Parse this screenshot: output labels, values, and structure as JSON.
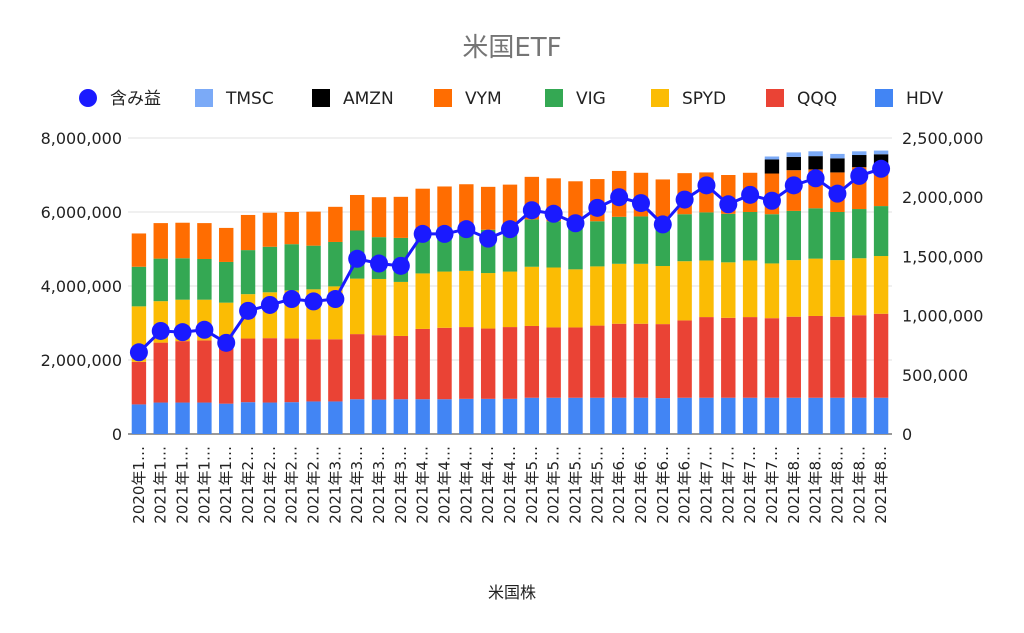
{
  "chart_data": {
    "type": "bar",
    "title": "米国ETF",
    "xlabel": "米国株",
    "ylabel": "",
    "ylim": [
      0,
      8000000
    ],
    "y_ticks": [
      "0",
      "2,000,000",
      "4,000,000",
      "6,000,000",
      "8,000,000"
    ],
    "y2lim": [
      0,
      2500000
    ],
    "y2_ticks": [
      "0",
      "500,000",
      "1,000,000",
      "1,500,000",
      "2,000,000",
      "2,500,000"
    ],
    "stacked": true,
    "grid": true,
    "legend_position": "top",
    "categories": [
      "2020年1…",
      "2021年1…",
      "2021年1…",
      "2021年1…",
      "2021年1…",
      "2021年2…",
      "2021年2…",
      "2021年2…",
      "2021年2…",
      "2021年3…",
      "2021年3…",
      "2021年3…",
      "2021年3…",
      "2021年4…",
      "2021年4…",
      "2021年4…",
      "2021年4…",
      "2021年4…",
      "2021年5…",
      "2021年5…",
      "2021年5…",
      "2021年5…",
      "2021年6…",
      "2021年6…",
      "2021年6…",
      "2021年6…",
      "2021年7…",
      "2021年7…",
      "2021年7…",
      "2021年7…",
      "2021年8…",
      "2021年8…",
      "2021年8…",
      "2021年8…",
      "2021年8…"
    ],
    "series": [
      {
        "name": "HDV",
        "color": "#4285f4",
        "values": [
          800000,
          850000,
          850000,
          850000,
          820000,
          860000,
          850000,
          860000,
          880000,
          880000,
          940000,
          930000,
          940000,
          940000,
          940000,
          950000,
          950000,
          950000,
          980000,
          980000,
          980000,
          980000,
          980000,
          980000,
          970000,
          980000,
          980000,
          980000,
          980000,
          980000,
          980000,
          980000,
          980000,
          980000,
          980000
        ]
      },
      {
        "name": "QQQ",
        "color": "#ea4335",
        "values": [
          1150000,
          1620000,
          1660000,
          1680000,
          1630000,
          1720000,
          1740000,
          1720000,
          1680000,
          1680000,
          1760000,
          1740000,
          1710000,
          1900000,
          1930000,
          1940000,
          1900000,
          1940000,
          1940000,
          1900000,
          1900000,
          1950000,
          2000000,
          2000000,
          2000000,
          2090000,
          2180000,
          2160000,
          2180000,
          2150000,
          2190000,
          2210000,
          2190000,
          2230000,
          2270000
        ]
      },
      {
        "name": "SPYD",
        "color": "#fbbc04",
        "values": [
          1500000,
          1120000,
          1120000,
          1100000,
          1100000,
          1200000,
          1240000,
          1300000,
          1350000,
          1430000,
          1500000,
          1520000,
          1460000,
          1500000,
          1520000,
          1520000,
          1500000,
          1500000,
          1600000,
          1620000,
          1570000,
          1600000,
          1620000,
          1620000,
          1570000,
          1600000,
          1530000,
          1500000,
          1530000,
          1480000,
          1530000,
          1550000,
          1530000,
          1540000,
          1560000
        ]
      },
      {
        "name": "VIG",
        "color": "#34a853",
        "values": [
          1070000,
          1150000,
          1120000,
          1100000,
          1100000,
          1190000,
          1230000,
          1250000,
          1180000,
          1200000,
          1300000,
          1130000,
          1190000,
          1180000,
          1200000,
          1210000,
          1170000,
          1200000,
          1280000,
          1250000,
          1250000,
          1220000,
          1270000,
          1280000,
          1250000,
          1270000,
          1300000,
          1310000,
          1310000,
          1330000,
          1330000,
          1360000,
          1300000,
          1330000,
          1350000
        ]
      },
      {
        "name": "VYM",
        "color": "#ff6d01",
        "values": [
          900000,
          960000,
          960000,
          970000,
          920000,
          950000,
          920000,
          870000,
          920000,
          950000,
          960000,
          1080000,
          1110000,
          1110000,
          1100000,
          1130000,
          1160000,
          1150000,
          1150000,
          1160000,
          1130000,
          1140000,
          1240000,
          1180000,
          1090000,
          1110000,
          1080000,
          1050000,
          1060000,
          1100000,
          1100000,
          1050000,
          1070000,
          1130000,
          1130000
        ]
      },
      {
        "name": "AMZN",
        "color": "#000000",
        "values": [
          0,
          0,
          0,
          0,
          0,
          0,
          0,
          0,
          0,
          0,
          0,
          0,
          0,
          0,
          0,
          0,
          0,
          0,
          0,
          0,
          0,
          0,
          0,
          0,
          0,
          0,
          0,
          0,
          0,
          380000,
          360000,
          360000,
          380000,
          330000,
          270000
        ]
      },
      {
        "name": "TMSC",
        "color": "#7baaf7",
        "values": [
          0,
          0,
          0,
          0,
          0,
          0,
          0,
          0,
          0,
          0,
          0,
          0,
          0,
          0,
          0,
          0,
          0,
          0,
          0,
          0,
          0,
          0,
          0,
          0,
          0,
          0,
          0,
          0,
          0,
          80000,
          120000,
          130000,
          120000,
          100000,
          100000
        ]
      }
    ],
    "line_series": {
      "name": "含み益",
      "color": "#1a1aff",
      "axis": "right",
      "values": [
        690000,
        870000,
        860000,
        880000,
        770000,
        1040000,
        1090000,
        1140000,
        1120000,
        1140000,
        1480000,
        1440000,
        1420000,
        1690000,
        1690000,
        1730000,
        1650000,
        1730000,
        1890000,
        1860000,
        1780000,
        1910000,
        2000000,
        1950000,
        1770000,
        1980000,
        2100000,
        1940000,
        2020000,
        1970000,
        2100000,
        2160000,
        2030000,
        2180000,
        2240000
      ]
    },
    "legend": [
      "含み益",
      "TMSC",
      "AMZN",
      "VYM",
      "VIG",
      "SPYD",
      "QQQ",
      "HDV"
    ]
  }
}
